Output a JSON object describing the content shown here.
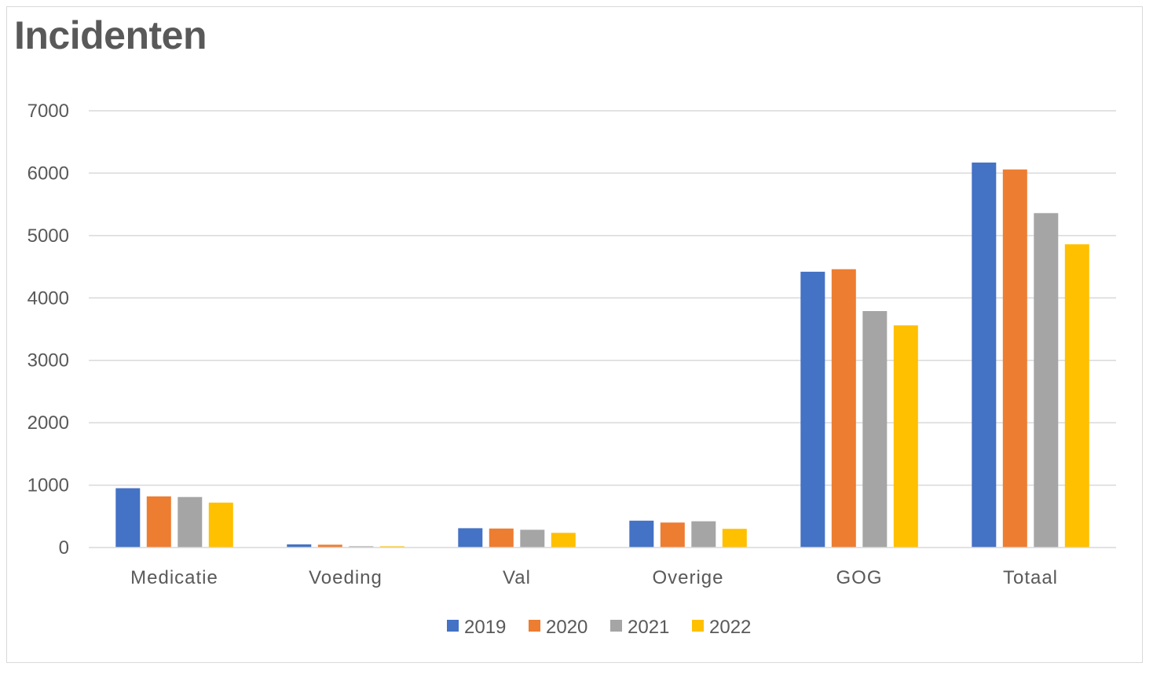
{
  "chart_data": {
    "type": "bar",
    "title": "Incidenten",
    "xlabel": "",
    "ylabel": "",
    "categories": [
      "Medicatie",
      "Voeding",
      "Val",
      "Overige",
      "GOG",
      "Totaal"
    ],
    "series": [
      {
        "name": "2019",
        "color": "#4472c4",
        "values": [
          950,
          50,
          310,
          430,
          4420,
          6170
        ]
      },
      {
        "name": "2020",
        "color": "#ed7d31",
        "values": [
          820,
          45,
          305,
          400,
          4460,
          6060
        ]
      },
      {
        "name": "2021",
        "color": "#a5a5a5",
        "values": [
          810,
          20,
          285,
          420,
          3790,
          5360
        ]
      },
      {
        "name": "2022",
        "color": "#ffc000",
        "values": [
          720,
          20,
          235,
          300,
          3560,
          4860
        ]
      }
    ],
    "ylim": [
      0,
      7000
    ],
    "yticks": [
      0,
      1000,
      2000,
      3000,
      4000,
      5000,
      6000,
      7000
    ],
    "grid": true,
    "legend_position": "bottom"
  }
}
